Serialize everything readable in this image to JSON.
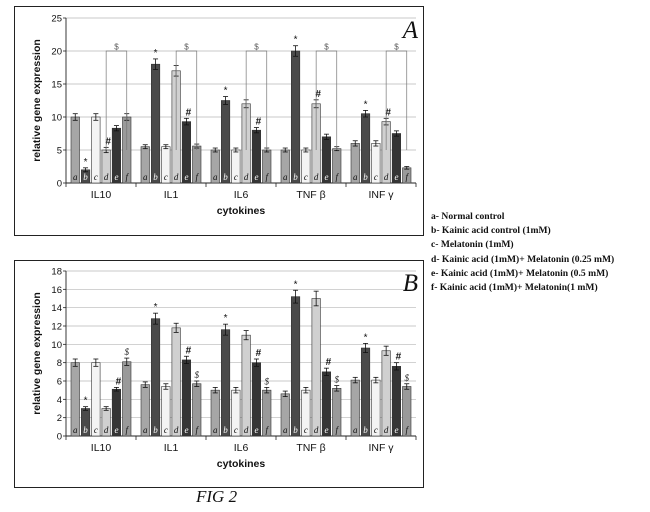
{
  "figure_caption": "FIG 2",
  "legend": [
    "a- Normal control",
    "b- Kainic acid control (1mM)",
    "c- Melatonin (1mM)",
    "d- Kainic acid (1mM)+ Melatonin (0.25 mM)",
    "e- Kainic acid (1mM)+ Melatonin (0.5 mM)",
    "f- Kainic acid (1mM)+ Melatonin(1 mM)"
  ],
  "colors": {
    "a": "#a6a6a6",
    "b": "#4a4a4a",
    "c": "#f4f4f4",
    "d": "#d0d0d0",
    "e": "#353535",
    "f": "#9a9a9a"
  },
  "chart_data": [
    {
      "type": "bar",
      "panel_label": "A",
      "categories": [
        "IL10",
        "IL1",
        "IL6",
        "TNF β",
        "INF  γ"
      ],
      "bar_letters": [
        "a",
        "b",
        "c",
        "d",
        "e",
        "f"
      ],
      "xlabel": "cytokines",
      "ylabel": "relative gene expression",
      "ylim": [
        0,
        25
      ],
      "yticks": [
        0,
        5,
        10,
        15,
        20,
        25
      ],
      "grid": true,
      "series": [
        {
          "key": "a",
          "values": [
            10,
            5.5,
            5,
            5,
            6
          ],
          "errors": [
            0.5,
            0.3,
            0.3,
            0.3,
            0.4
          ]
        },
        {
          "key": "b",
          "values": [
            2,
            18,
            12.5,
            20,
            10.5
          ],
          "errors": [
            0.3,
            0.8,
            0.6,
            0.8,
            0.5
          ]
        },
        {
          "key": "c",
          "values": [
            10,
            5.5,
            5,
            5,
            6
          ],
          "errors": [
            0.5,
            0.3,
            0.3,
            0.3,
            0.4
          ]
        },
        {
          "key": "d",
          "values": [
            5,
            17,
            12,
            12,
            9.3
          ],
          "errors": [
            0.4,
            0.8,
            0.6,
            0.6,
            0.5
          ]
        },
        {
          "key": "e",
          "values": [
            8.3,
            9.3,
            8,
            7,
            7.5
          ],
          "errors": [
            0.4,
            0.5,
            0.4,
            0.4,
            0.4
          ]
        },
        {
          "key": "f",
          "values": [
            10,
            5.6,
            5,
            5.2,
            2.3
          ],
          "errors": [
            0.5,
            0.3,
            0.3,
            0.3,
            0.2
          ]
        }
      ],
      "annotations": {
        "star": [
          [
            0,
            1
          ],
          [
            1,
            1
          ],
          [
            2,
            1
          ],
          [
            3,
            1
          ],
          [
            4,
            1
          ]
        ],
        "hash": [
          [
            0,
            3
          ],
          [
            1,
            4
          ],
          [
            2,
            4
          ],
          [
            3,
            3
          ],
          [
            4,
            3
          ]
        ],
        "dollar_bracket": [
          [
            0,
            3,
            5
          ],
          [
            1,
            3,
            5
          ],
          [
            2,
            3,
            5
          ],
          [
            3,
            3,
            5
          ],
          [
            4,
            3,
            5
          ]
        ]
      },
      "symbols": {
        "star": "*",
        "hash": "#",
        "dollar": "$"
      }
    },
    {
      "type": "bar",
      "panel_label": "B",
      "categories": [
        "IL10",
        "IL1",
        "IL6",
        "TNF β",
        "INF  γ"
      ],
      "bar_letters": [
        "a",
        "b",
        "c",
        "d",
        "e",
        "f"
      ],
      "xlabel": "cytokines",
      "ylabel": "relative gene expression",
      "ylim": [
        0,
        18
      ],
      "yticks": [
        0,
        2,
        4,
        6,
        8,
        10,
        12,
        14,
        16,
        18
      ],
      "grid": true,
      "series": [
        {
          "key": "a",
          "values": [
            8,
            5.6,
            5,
            4.6,
            6.1
          ],
          "errors": [
            0.4,
            0.3,
            0.3,
            0.3,
            0.3
          ]
        },
        {
          "key": "b",
          "values": [
            3,
            12.8,
            11.6,
            15.2,
            9.6
          ],
          "errors": [
            0.2,
            0.6,
            0.6,
            0.7,
            0.5
          ]
        },
        {
          "key": "c",
          "values": [
            8,
            5.4,
            5,
            5,
            6.1
          ],
          "errors": [
            0.4,
            0.3,
            0.3,
            0.3,
            0.3
          ]
        },
        {
          "key": "d",
          "values": [
            3,
            11.8,
            11,
            15,
            9.3
          ],
          "errors": [
            0.2,
            0.5,
            0.5,
            0.8,
            0.5
          ]
        },
        {
          "key": "e",
          "values": [
            5.1,
            8.3,
            8,
            7,
            7.6
          ],
          "errors": [
            0.2,
            0.4,
            0.4,
            0.4,
            0.4
          ]
        },
        {
          "key": "f",
          "values": [
            8.1,
            5.7,
            5,
            5.2,
            5.4
          ],
          "errors": [
            0.4,
            0.3,
            0.3,
            0.3,
            0.3
          ]
        }
      ],
      "annotations": {
        "star": [
          [
            0,
            1
          ],
          [
            1,
            1
          ],
          [
            2,
            1
          ],
          [
            3,
            1
          ],
          [
            4,
            1
          ]
        ],
        "hash": [
          [
            0,
            4
          ],
          [
            1,
            4
          ],
          [
            2,
            4
          ],
          [
            3,
            4
          ],
          [
            4,
            4
          ]
        ],
        "dollar": [
          [
            0,
            5
          ],
          [
            1,
            5
          ],
          [
            2,
            5
          ],
          [
            3,
            5
          ],
          [
            4,
            5
          ]
        ]
      },
      "symbols": {
        "star": "*",
        "hash": "#",
        "dollar": "$"
      }
    }
  ]
}
